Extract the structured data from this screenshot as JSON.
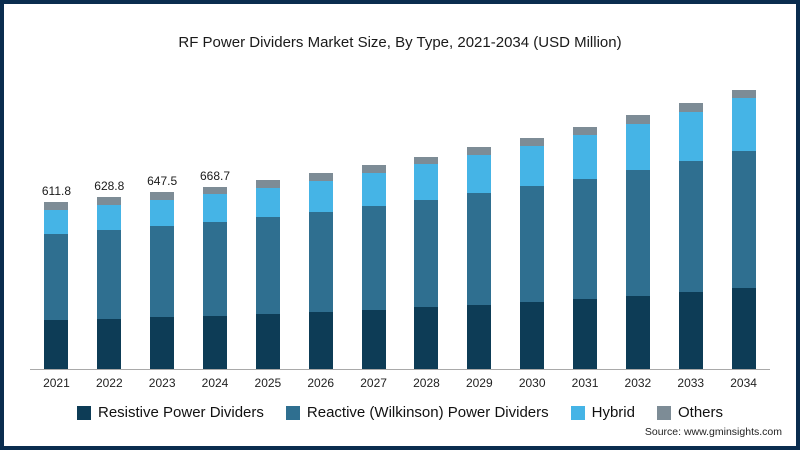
{
  "title": "RF Power Dividers Market Size, By Type, 2021-2034 (USD Million)",
  "source": "Source: www.gminsights.com",
  "colors": {
    "resistive": "#0d3c56",
    "reactive": "#2f6f90",
    "hybrid": "#45b4e6",
    "others": "#7d8c96",
    "frame_border": "#0a2d4f",
    "axis_line": "#a9a9a9"
  },
  "chart_data": {
    "type": "bar",
    "stacked": true,
    "title": "RF Power Dividers Market Size, By Type, 2021-2034 (USD Million)",
    "xlabel": "",
    "ylabel": "USD Million",
    "ylim": [
      0,
      1100
    ],
    "grid": false,
    "legend_position": "bottom",
    "categories": [
      2021,
      2022,
      2023,
      2024,
      2025,
      2026,
      2027,
      2028,
      2029,
      2030,
      2031,
      2032,
      2033,
      2034
    ],
    "series": [
      {
        "name": "Resistive Power Dividers",
        "color_key": "resistive",
        "values": [
          180.0,
          185.0,
          190.5,
          196.0,
          203,
          210,
          218,
          227,
          236,
          246,
          257,
          269,
          282,
          296
        ]
      },
      {
        "name": "Reactive (Wilkinson) Power Dividers",
        "color_key": "reactive",
        "values": [
          316.0,
          324.0,
          333.0,
          343.5,
          354,
          366,
          379,
          393,
          408,
          424,
          441,
          460,
          480,
          502
        ]
      },
      {
        "name": "Hybrid",
        "color_key": "hybrid",
        "values": [
          87.0,
          91.0,
          95.5,
          100.5,
          107,
          114,
          122,
          130,
          139,
          149,
          159,
          170,
          182,
          195
        ]
      },
      {
        "name": "Others",
        "color_key": "others",
        "values": [
          28.8,
          28.8,
          28.5,
          28.7,
          29,
          29,
          29,
          29,
          30,
          30,
          30,
          31,
          31,
          32
        ]
      }
    ],
    "totals_labels": {
      "2021": "611.8",
      "2022": "628.8",
      "2023": "647.5",
      "2024": "668.7"
    }
  }
}
